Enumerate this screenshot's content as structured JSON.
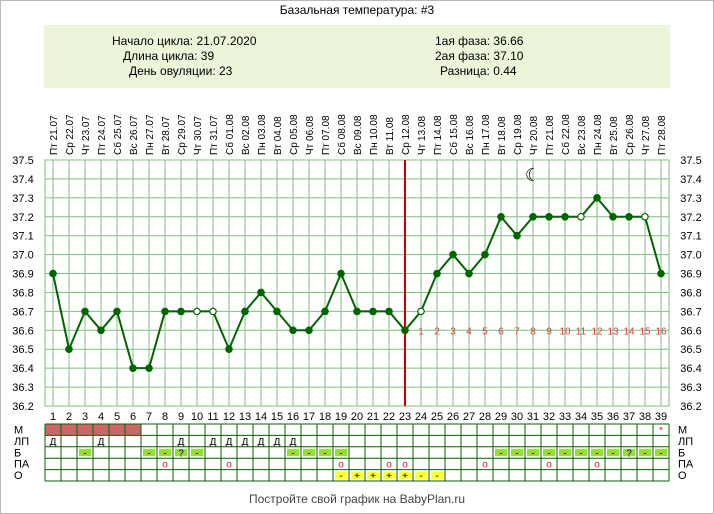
{
  "title": "Базальная температура: #3",
  "info": {
    "cycle_start": "Начало цикла: 21.07.2020",
    "cycle_length": "Длина цикла: 39",
    "ovulation_day": "День овуляции: 23",
    "phase1": "1ая фаза: 36.66",
    "phase2": "2ая фаза: 37.10",
    "difference": "Разница: 0.44"
  },
  "footer": "Постройте свой график на BabyPlan.ru",
  "chart_data": {
    "type": "line",
    "x": [
      1,
      2,
      3,
      4,
      5,
      6,
      7,
      8,
      9,
      10,
      11,
      12,
      13,
      14,
      15,
      16,
      17,
      18,
      19,
      20,
      21,
      22,
      23,
      24,
      25,
      26,
      27,
      28,
      29,
      30,
      31,
      32,
      33,
      34,
      35,
      36,
      37,
      38,
      39
    ],
    "dates": [
      "Пт 21.07",
      "Ср 22.07",
      "Чт 23.07",
      "Пт 24.07",
      "Сб 25.07",
      "Вс 26.07",
      "Пн 27.07",
      "Вт 28.07",
      "Ср 29.07",
      "Чт 30.07",
      "Пт 31.07",
      "Сб 01.08",
      "Вс 02.08",
      "Пн 03.08",
      "Вт 04.08",
      "Ср 05.08",
      "Чт 06.08",
      "Пт 07.08",
      "Сб 08.08",
      "Вс 09.08",
      "Пн 10.08",
      "Вт 11.08",
      "Ср 12.08",
      "Чт 13.08",
      "Пт 14.08",
      "Сб 15.08",
      "Вс 16.08",
      "Пн 17.08",
      "Вт 18.08",
      "Ср 19.08",
      "Чт 20.08",
      "Пт 21.08",
      "Сб 22.08",
      "Вс 23.08",
      "Пн 24.08",
      "Вт 25.08",
      "Ср 26.08",
      "Чт 27.08",
      "Пт 28.08"
    ],
    "series": [
      {
        "values": [
          36.9,
          36.5,
          36.7,
          36.6,
          36.7,
          36.4,
          36.4,
          36.7,
          36.7,
          36.7,
          36.7,
          36.5,
          36.7,
          36.8,
          36.7,
          36.6,
          36.6,
          36.7,
          36.9,
          36.7,
          36.7,
          36.7,
          36.6,
          36.7,
          36.9,
          37.0,
          36.9,
          37.0,
          37.2,
          37.1,
          37.2,
          37.2,
          37.2,
          37.2,
          37.3,
          37.2,
          37.2,
          37.2,
          36.9
        ],
        "hollow": [
          10,
          11,
          24,
          34,
          38
        ],
        "color": "#006400"
      }
    ],
    "ylim": [
      36.2,
      37.5
    ],
    "y_ticks": [
      "36.2",
      "36.3",
      "36.4",
      "36.5",
      "36.6",
      "36.7",
      "36.8",
      "36.9",
      "37.0",
      "37.1",
      "37.2",
      "37.3",
      "37.4",
      "37.5"
    ],
    "ovulation_day": 23,
    "ovulation_line_color": "#cc0000",
    "luteal_day_numbers": [
      "1",
      "2",
      "3",
      "4",
      "5",
      "6",
      "7",
      "8",
      "9",
      "10",
      "11",
      "12",
      "13",
      "14",
      "15",
      "16"
    ],
    "luteal_number_color": "#cc4444",
    "moon_symbol": "☾",
    "moon_day": 31,
    "moon_temp": 37.43,
    "grid": true,
    "rows": [
      {
        "label_left": "М",
        "label_right": "М",
        "red_fill_days": [
          1,
          2,
          3,
          4,
          5,
          6
        ],
        "marks": {
          "39": "*"
        }
      },
      {
        "label_left": "ЛП",
        "label_right": "ЛП",
        "marks": {
          "1": "Д",
          "4": "Д",
          "9": "Д",
          "11": "Д",
          "12": "Д",
          "13": "Д",
          "14": "Д",
          "15": "Д",
          "16": "Д"
        }
      },
      {
        "label_left": "Б",
        "label_right": "Б",
        "green_days": [
          3,
          7,
          8,
          9,
          10,
          16,
          17,
          18,
          19,
          29,
          30,
          31,
          32,
          33,
          34,
          35,
          36,
          37,
          38,
          39
        ],
        "marks": {
          "3": "-",
          "7": "-",
          "8": "-",
          "9": "?",
          "10": "-",
          "16": "-",
          "17": "-",
          "18": "-",
          "19": "-",
          "29": "-",
          "30": "-",
          "31": "-",
          "32": "-",
          "33": "-",
          "34": "-",
          "35": "-",
          "36": "-",
          "37": "?",
          "38": "-",
          "39": "-"
        }
      },
      {
        "label_left": "ПА",
        "label_right": "ПА",
        "marks": {
          "8": "o",
          "12": "o",
          "19": "o",
          "22": "o",
          "23": "o",
          "28": "o",
          "32": "o",
          "35": "o"
        }
      },
      {
        "label_left": "О",
        "label_right": "О",
        "yellow_days": [
          19,
          20,
          21,
          22,
          23,
          24,
          25
        ],
        "marks": {
          "19": "-",
          "20": "+",
          "21": "+",
          "22": "+",
          "23": "+",
          "24": "-",
          "25": "-"
        }
      }
    ],
    "colors": {
      "line": "#006400",
      "grid": "#7fbf7f",
      "red_fill": "#cc6666",
      "green_fill": "#99dd33",
      "yellow_fill": "#ffff33",
      "info_bg": "#ebf5d9"
    }
  }
}
